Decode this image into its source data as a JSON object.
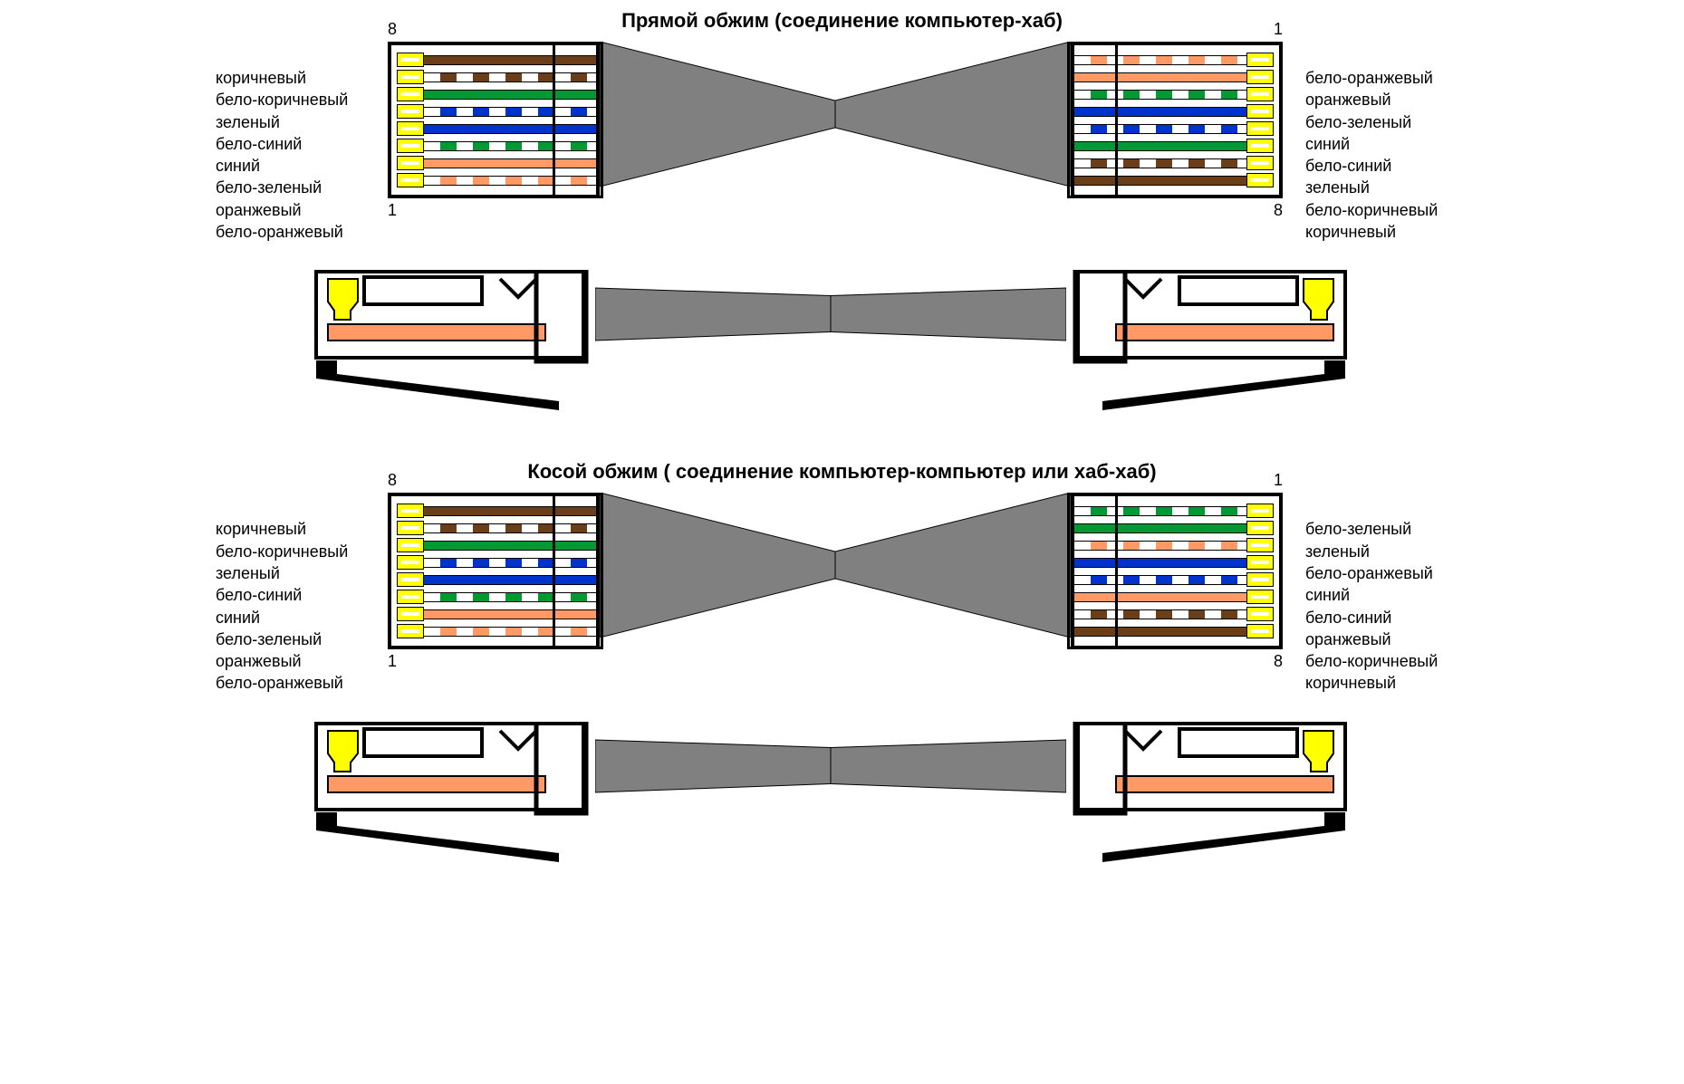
{
  "colors": {
    "brown": "#6b3e1a",
    "white_brown_a": "#ffffff",
    "white_brown_b": "#6b3e1a",
    "green": "#009933",
    "white_blue_a": "#ffffff",
    "white_blue_b": "#0033cc",
    "blue": "#0033cc",
    "white_green_a": "#ffffff",
    "white_green_b": "#009933",
    "orange": "#ff9966",
    "white_orange_a": "#ffffff",
    "white_orange_b": "#ff9966",
    "yellow": "#ffff00",
    "gray": "#808080",
    "black": "#000000",
    "white": "#ffffff"
  },
  "straight": {
    "title": "Прямой обжим (соединение компьютер-хаб)",
    "left_pin_top": "8",
    "left_pin_bottom": "1",
    "right_pin_top": "1",
    "right_pin_bottom": "8",
    "left_labels": [
      "коричневый",
      "бело-коричневый",
      "зеленый",
      "бело-синий",
      "синий",
      "бело-зеленый",
      "оранжевый",
      "бело-оранжевый"
    ],
    "right_labels": [
      "бело-оранжевый",
      "оранжевый",
      "бело-зеленый",
      "синий",
      "бело-синий",
      "зеленый",
      "бело-коричневый",
      "коричневый"
    ],
    "left_wires": [
      {
        "type": "solid",
        "color": "#6b3e1a"
      },
      {
        "type": "striped",
        "a": "#ffffff",
        "b": "#6b3e1a"
      },
      {
        "type": "solid",
        "color": "#009933"
      },
      {
        "type": "striped",
        "a": "#ffffff",
        "b": "#0033cc"
      },
      {
        "type": "solid",
        "color": "#0033cc"
      },
      {
        "type": "striped",
        "a": "#ffffff",
        "b": "#009933"
      },
      {
        "type": "solid",
        "color": "#ff9966"
      },
      {
        "type": "striped",
        "a": "#ffffff",
        "b": "#ff9966"
      }
    ],
    "right_wires": [
      {
        "type": "striped",
        "a": "#ffffff",
        "b": "#ff9966"
      },
      {
        "type": "solid",
        "color": "#ff9966"
      },
      {
        "type": "striped",
        "a": "#ffffff",
        "b": "#009933"
      },
      {
        "type": "solid",
        "color": "#0033cc"
      },
      {
        "type": "striped",
        "a": "#ffffff",
        "b": "#0033cc"
      },
      {
        "type": "solid",
        "color": "#009933"
      },
      {
        "type": "striped",
        "a": "#ffffff",
        "b": "#6b3e1a"
      },
      {
        "type": "solid",
        "color": "#6b3e1a"
      }
    ]
  },
  "crossover": {
    "title": "Косой обжим ( соединение компьютер-компьютер или хаб-хаб)",
    "left_pin_top": "8",
    "left_pin_bottom": "1",
    "right_pin_top": "1",
    "right_pin_bottom": "8",
    "left_labels": [
      "коричневый",
      "бело-коричневый",
      "зеленый",
      "бело-синий",
      "синий",
      "бело-зеленый",
      "оранжевый",
      "бело-оранжевый"
    ],
    "right_labels": [
      "бело-зеленый",
      "зеленый",
      "бело-оранжевый",
      "синий",
      "бело-синий",
      "оранжевый",
      "бело-коричневый",
      "коричневый"
    ],
    "left_wires": [
      {
        "type": "solid",
        "color": "#6b3e1a"
      },
      {
        "type": "striped",
        "a": "#ffffff",
        "b": "#6b3e1a"
      },
      {
        "type": "solid",
        "color": "#009933"
      },
      {
        "type": "striped",
        "a": "#ffffff",
        "b": "#0033cc"
      },
      {
        "type": "solid",
        "color": "#0033cc"
      },
      {
        "type": "striped",
        "a": "#ffffff",
        "b": "#009933"
      },
      {
        "type": "solid",
        "color": "#ff9966"
      },
      {
        "type": "striped",
        "a": "#ffffff",
        "b": "#ff9966"
      }
    ],
    "right_wires": [
      {
        "type": "striped",
        "a": "#ffffff",
        "b": "#009933"
      },
      {
        "type": "solid",
        "color": "#009933"
      },
      {
        "type": "striped",
        "a": "#ffffff",
        "b": "#ff9966"
      },
      {
        "type": "solid",
        "color": "#0033cc"
      },
      {
        "type": "striped",
        "a": "#ffffff",
        "b": "#0033cc"
      },
      {
        "type": "solid",
        "color": "#ff9966"
      },
      {
        "type": "striped",
        "a": "#ffffff",
        "b": "#6b3e1a"
      },
      {
        "type": "solid",
        "color": "#6b3e1a"
      }
    ]
  },
  "layout": {
    "wire_body_width": 190,
    "wire_height": 11,
    "pin_contact_width": 30,
    "connector_border": 4,
    "clamp_width": 50,
    "cable_mid_width": 260,
    "side_wire_color": "#ff9966",
    "font_size_title": 22,
    "font_size_label": 18
  }
}
